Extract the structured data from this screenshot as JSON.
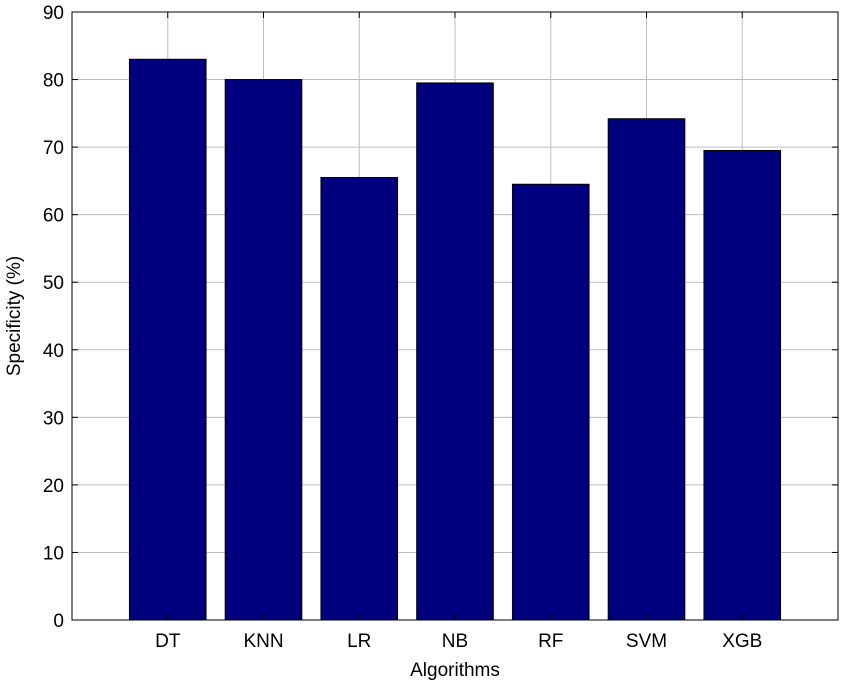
{
  "chart_data": {
    "type": "bar",
    "categories": [
      "DT",
      "KNN",
      "LR",
      "NB",
      "RF",
      "SVM",
      "XGB"
    ],
    "values": [
      83,
      80,
      65.5,
      79.5,
      64.5,
      74.2,
      69.5
    ],
    "xlabel": "Algorithms",
    "ylabel": "Specificity (%)",
    "ylim": [
      0,
      90
    ],
    "yticks": [
      0,
      10,
      20,
      30,
      40,
      50,
      60,
      70,
      80,
      90
    ],
    "grid": true,
    "bar_color": "#00007F"
  }
}
